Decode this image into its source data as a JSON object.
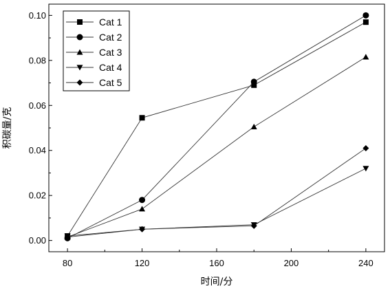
{
  "chart_data": {
    "type": "line",
    "title": "",
    "xlabel": "时间/分",
    "ylabel": "积碳量/克",
    "xlim": [
      70,
      250
    ],
    "ylim": [
      -0.005,
      0.105
    ],
    "xticks": [
      "80",
      "120",
      "160",
      "200",
      "240"
    ],
    "yticks": [
      "0.00",
      "0.02",
      "0.04",
      "0.06",
      "0.08",
      "0.10"
    ],
    "grid": false,
    "legend_position": "top-left",
    "x": [
      80,
      120,
      180,
      240
    ],
    "series": [
      {
        "name": "Cat 1",
        "marker": "square",
        "values": [
          0.002,
          0.0545,
          0.069,
          0.097
        ]
      },
      {
        "name": "Cat 2",
        "marker": "circle",
        "values": [
          0.001,
          0.018,
          0.0705,
          0.1
        ]
      },
      {
        "name": "Cat 3",
        "marker": "triangle-up",
        "values": [
          0.0015,
          0.014,
          0.0505,
          0.0815
        ]
      },
      {
        "name": "Cat 4",
        "marker": "triangle-down",
        "values": [
          0.002,
          0.005,
          0.007,
          0.032
        ]
      },
      {
        "name": "Cat 5",
        "marker": "diamond",
        "values": [
          0.0015,
          0.005,
          0.0065,
          0.041
        ]
      }
    ]
  }
}
